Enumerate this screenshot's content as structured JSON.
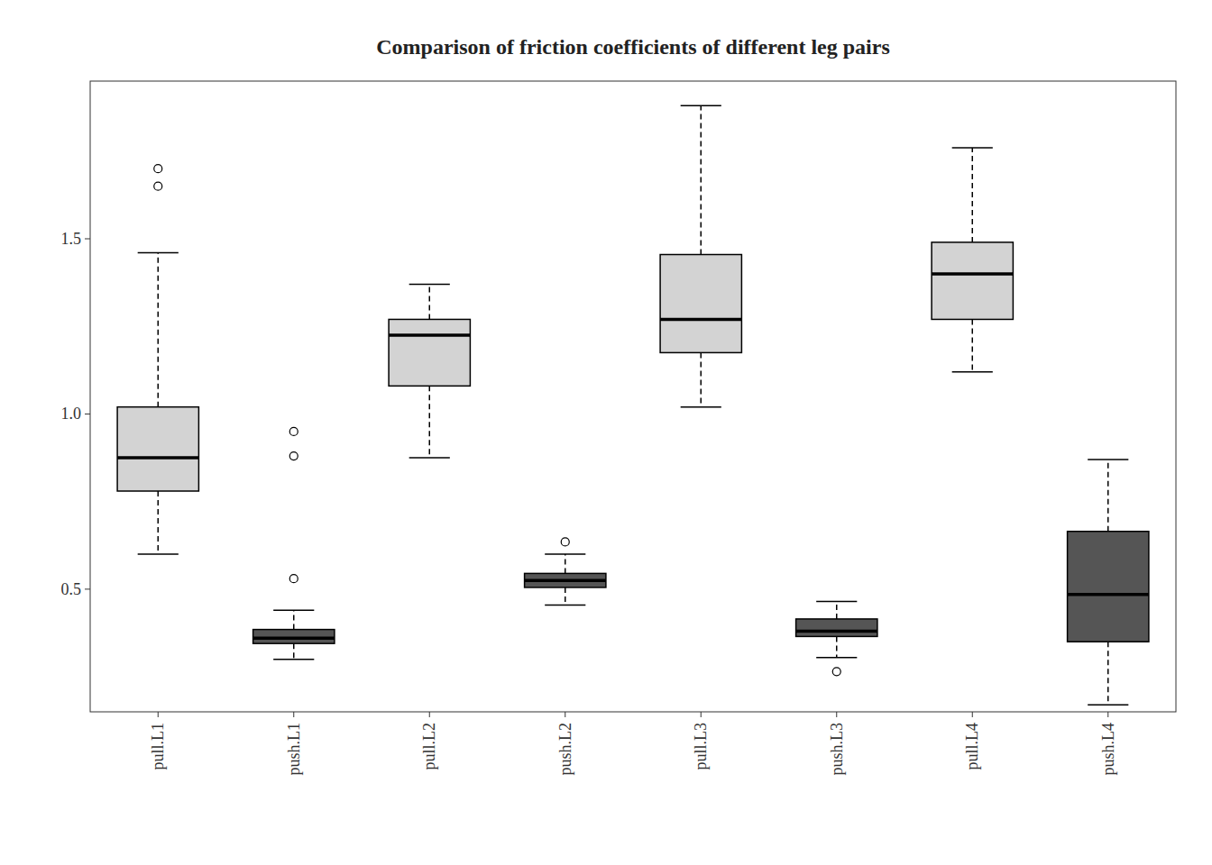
{
  "chart_data": {
    "type": "box",
    "title": "Comparison of friction coefficients of different leg pairs",
    "categories": [
      "pull.L1",
      "push.L1",
      "pull.L2",
      "push.L2",
      "pull.L3",
      "push.L3",
      "pull.L4",
      "push.L4"
    ],
    "boxes": [
      {
        "whislo": 0.6,
        "q1": 0.78,
        "med": 0.875,
        "q3": 1.02,
        "whishi": 1.46,
        "fliers": [
          1.65,
          1.7
        ]
      },
      {
        "whislo": 0.3,
        "q1": 0.345,
        "med": 0.36,
        "q3": 0.385,
        "whishi": 0.44,
        "fliers": [
          0.53,
          0.95,
          0.88
        ]
      },
      {
        "whislo": 0.875,
        "q1": 1.08,
        "med": 1.225,
        "q3": 1.27,
        "whishi": 1.37,
        "fliers": []
      },
      {
        "whislo": 0.455,
        "q1": 0.505,
        "med": 0.525,
        "q3": 0.545,
        "whishi": 0.6,
        "fliers": [
          0.635
        ]
      },
      {
        "whislo": 1.02,
        "q1": 1.175,
        "med": 1.27,
        "q3": 1.455,
        "whishi": 1.88,
        "fliers": []
      },
      {
        "whislo": 0.305,
        "q1": 0.365,
        "med": 0.38,
        "q3": 0.415,
        "whishi": 0.465,
        "fliers": [
          0.265
        ]
      },
      {
        "whislo": 1.12,
        "q1": 1.27,
        "med": 1.4,
        "q3": 1.49,
        "whishi": 1.76,
        "fliers": []
      },
      {
        "whislo": 0.17,
        "q1": 0.35,
        "med": 0.485,
        "q3": 0.665,
        "whishi": 0.87,
        "fliers": []
      }
    ],
    "colors": [
      "#d3d3d3",
      "#555555",
      "#d3d3d3",
      "#555555",
      "#d3d3d3",
      "#555555",
      "#d3d3d3",
      "#555555"
    ],
    "ylim": [
      0.15,
      1.95
    ],
    "yticks": [
      0.5,
      {
        "value": 1.0,
        "label": "1.0"
      },
      1.5
    ],
    "grid": false
  }
}
